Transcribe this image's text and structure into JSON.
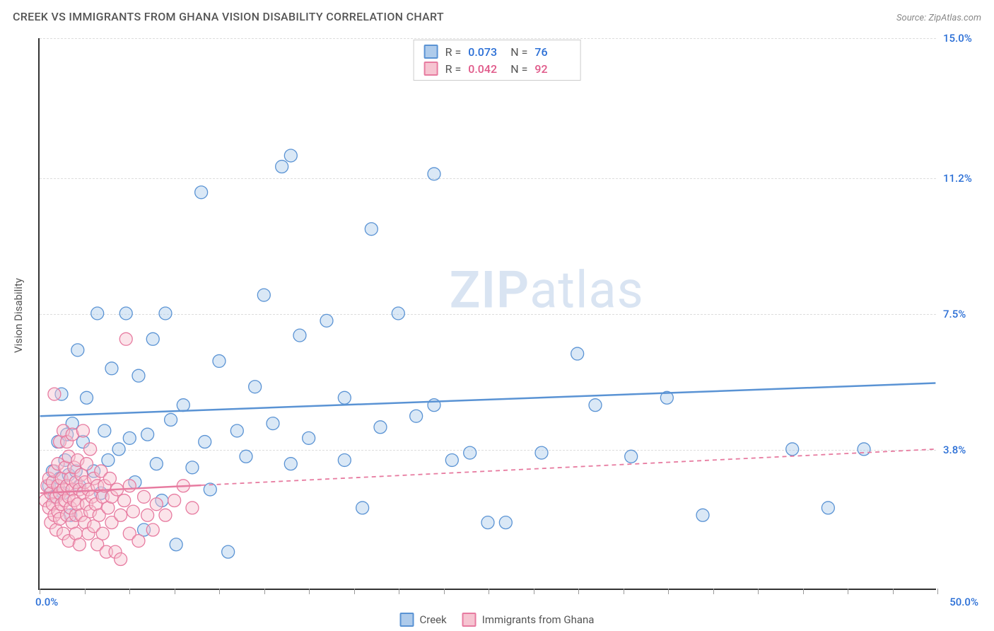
{
  "header": {
    "title": "CREEK VS IMMIGRANTS FROM GHANA VISION DISABILITY CORRELATION CHART",
    "source_label": "Source:",
    "source_name": "ZipAtlas.com"
  },
  "watermark": {
    "zip": "ZIP",
    "atlas": "atlas",
    "color": "#d9e4f2"
  },
  "chart": {
    "type": "scatter",
    "y_axis_label": "Vision Disability",
    "xlim": [
      0,
      50
    ],
    "ylim": [
      0,
      15
    ],
    "x_min_label": "0.0%",
    "x_max_label": "50.0%",
    "x_label_color": "#2b6fd6",
    "y_gridlines": [
      3.8,
      7.5,
      11.2,
      15.0
    ],
    "y_tick_labels": [
      "3.8%",
      "7.5%",
      "11.2%",
      "15.0%"
    ],
    "y_tick_color": "#2b6fd6",
    "grid_color": "#dddddd",
    "x_tick_step": 2.5,
    "background_color": "#ffffff",
    "marker_radius": 9,
    "marker_fill_opacity": 0.45,
    "marker_stroke_width": 1.3,
    "trend_line_width": 2.5
  },
  "series": [
    {
      "name": "Creek",
      "fill": "#aecbeb",
      "stroke": "#5a93d4",
      "value_color": "#2b6fd6",
      "R": "0.073",
      "N": "76",
      "trend": {
        "y_at_x0": 4.7,
        "y_at_x50": 5.6,
        "solid_until_x": 50,
        "dash": "none"
      },
      "points": [
        [
          0.5,
          2.8
        ],
        [
          0.7,
          3.2
        ],
        [
          0.8,
          2.5
        ],
        [
          1.0,
          4.0
        ],
        [
          1.1,
          3.0
        ],
        [
          1.2,
          5.3
        ],
        [
          1.3,
          2.6
        ],
        [
          1.4,
          3.5
        ],
        [
          1.5,
          4.2
        ],
        [
          1.6,
          3.1
        ],
        [
          1.7,
          2.0
        ],
        [
          1.8,
          4.5
        ],
        [
          2.0,
          3.2
        ],
        [
          2.1,
          6.5
        ],
        [
          2.2,
          2.8
        ],
        [
          2.4,
          4.0
        ],
        [
          2.6,
          5.2
        ],
        [
          3.0,
          3.2
        ],
        [
          3.2,
          7.5
        ],
        [
          3.4,
          2.6
        ],
        [
          3.6,
          4.3
        ],
        [
          3.8,
          3.5
        ],
        [
          4.0,
          6.0
        ],
        [
          4.4,
          3.8
        ],
        [
          4.8,
          7.5
        ],
        [
          5.0,
          4.1
        ],
        [
          5.3,
          2.9
        ],
        [
          5.5,
          5.8
        ],
        [
          5.8,
          1.6
        ],
        [
          6.0,
          4.2
        ],
        [
          6.3,
          6.8
        ],
        [
          6.5,
          3.4
        ],
        [
          6.8,
          2.4
        ],
        [
          7.0,
          7.5
        ],
        [
          7.3,
          4.6
        ],
        [
          7.6,
          1.2
        ],
        [
          8.0,
          5.0
        ],
        [
          8.5,
          3.3
        ],
        [
          9.0,
          10.8
        ],
        [
          9.2,
          4.0
        ],
        [
          9.5,
          2.7
        ],
        [
          10.0,
          6.2
        ],
        [
          10.5,
          1.0
        ],
        [
          11.0,
          4.3
        ],
        [
          11.5,
          3.6
        ],
        [
          12.0,
          5.5
        ],
        [
          12.5,
          8.0
        ],
        [
          13.0,
          4.5
        ],
        [
          13.5,
          11.5
        ],
        [
          14.0,
          3.4
        ],
        [
          14.0,
          11.8
        ],
        [
          14.5,
          6.9
        ],
        [
          15.0,
          4.1
        ],
        [
          16.0,
          7.3
        ],
        [
          17.0,
          3.5
        ],
        [
          17.0,
          5.2
        ],
        [
          18.0,
          2.2
        ],
        [
          18.5,
          9.8
        ],
        [
          19.0,
          4.4
        ],
        [
          20.0,
          7.5
        ],
        [
          21.0,
          4.7
        ],
        [
          22.0,
          11.3
        ],
        [
          22.0,
          5.0
        ],
        [
          23.0,
          3.5
        ],
        [
          24.0,
          3.7
        ],
        [
          25.0,
          1.8
        ],
        [
          26.0,
          1.8
        ],
        [
          28.0,
          3.7
        ],
        [
          30.0,
          6.4
        ],
        [
          31.0,
          5.0
        ],
        [
          33.0,
          3.6
        ],
        [
          35.0,
          5.2
        ],
        [
          37.0,
          2.0
        ],
        [
          42.0,
          3.8
        ],
        [
          44.0,
          2.2
        ],
        [
          46.0,
          3.8
        ]
      ]
    },
    {
      "name": "Immigrants from Ghana",
      "fill": "#f6c4d1",
      "stroke": "#e77ba0",
      "value_color": "#e05a8a",
      "R": "0.042",
      "N": "92",
      "trend": {
        "y_at_x0": 2.6,
        "y_at_x50": 3.8,
        "solid_until_x": 9,
        "dash": "6 5"
      },
      "points": [
        [
          0.3,
          2.4
        ],
        [
          0.4,
          2.8
        ],
        [
          0.5,
          2.2
        ],
        [
          0.5,
          3.0
        ],
        [
          0.6,
          2.6
        ],
        [
          0.6,
          1.8
        ],
        [
          0.7,
          2.9
        ],
        [
          0.7,
          2.3
        ],
        [
          0.8,
          2.0
        ],
        [
          0.8,
          3.2
        ],
        [
          0.8,
          5.3
        ],
        [
          0.9,
          2.5
        ],
        [
          0.9,
          1.6
        ],
        [
          1.0,
          2.8
        ],
        [
          1.0,
          3.4
        ],
        [
          1.0,
          2.1
        ],
        [
          1.1,
          2.6
        ],
        [
          1.1,
          1.9
        ],
        [
          1.1,
          4.0
        ],
        [
          1.2,
          2.3
        ],
        [
          1.2,
          3.0
        ],
        [
          1.3,
          2.7
        ],
        [
          1.3,
          1.5
        ],
        [
          1.3,
          4.3
        ],
        [
          1.4,
          2.4
        ],
        [
          1.4,
          3.3
        ],
        [
          1.5,
          2.0
        ],
        [
          1.5,
          2.8
        ],
        [
          1.5,
          4.0
        ],
        [
          1.6,
          2.5
        ],
        [
          1.6,
          1.3
        ],
        [
          1.6,
          3.6
        ],
        [
          1.7,
          2.2
        ],
        [
          1.7,
          3.0
        ],
        [
          1.8,
          2.7
        ],
        [
          1.8,
          1.8
        ],
        [
          1.8,
          4.2
        ],
        [
          1.9,
          2.4
        ],
        [
          1.9,
          3.3
        ],
        [
          2.0,
          2.0
        ],
        [
          2.0,
          2.9
        ],
        [
          2.0,
          1.5
        ],
        [
          2.1,
          3.5
        ],
        [
          2.1,
          2.3
        ],
        [
          2.2,
          2.7
        ],
        [
          2.2,
          1.2
        ],
        [
          2.3,
          3.1
        ],
        [
          2.3,
          2.0
        ],
        [
          2.4,
          2.6
        ],
        [
          2.4,
          4.3
        ],
        [
          2.5,
          1.8
        ],
        [
          2.5,
          2.9
        ],
        [
          2.6,
          2.3
        ],
        [
          2.6,
          3.4
        ],
        [
          2.7,
          1.5
        ],
        [
          2.7,
          2.7
        ],
        [
          2.8,
          2.1
        ],
        [
          2.8,
          3.8
        ],
        [
          2.9,
          2.5
        ],
        [
          3.0,
          1.7
        ],
        [
          3.0,
          3.0
        ],
        [
          3.1,
          2.3
        ],
        [
          3.2,
          2.8
        ],
        [
          3.2,
          1.2
        ],
        [
          3.3,
          2.0
        ],
        [
          3.4,
          3.2
        ],
        [
          3.5,
          2.5
        ],
        [
          3.5,
          1.5
        ],
        [
          3.6,
          2.8
        ],
        [
          3.7,
          1.0
        ],
        [
          3.8,
          2.2
        ],
        [
          3.9,
          3.0
        ],
        [
          4.0,
          1.8
        ],
        [
          4.0,
          2.5
        ],
        [
          4.2,
          1.0
        ],
        [
          4.3,
          2.7
        ],
        [
          4.5,
          2.0
        ],
        [
          4.5,
          0.8
        ],
        [
          4.7,
          2.4
        ],
        [
          4.8,
          6.8
        ],
        [
          5.0,
          1.5
        ],
        [
          5.0,
          2.8
        ],
        [
          5.2,
          2.1
        ],
        [
          5.5,
          1.3
        ],
        [
          5.8,
          2.5
        ],
        [
          6.0,
          2.0
        ],
        [
          6.3,
          1.6
        ],
        [
          6.5,
          2.3
        ],
        [
          7.0,
          2.0
        ],
        [
          7.5,
          2.4
        ],
        [
          8.0,
          2.8
        ],
        [
          8.5,
          2.2
        ]
      ]
    }
  ],
  "stats_box": {
    "R_label": "R =",
    "N_label": "N ="
  },
  "bottom_legend": {
    "items": [
      "Creek",
      "Immigrants from Ghana"
    ]
  }
}
